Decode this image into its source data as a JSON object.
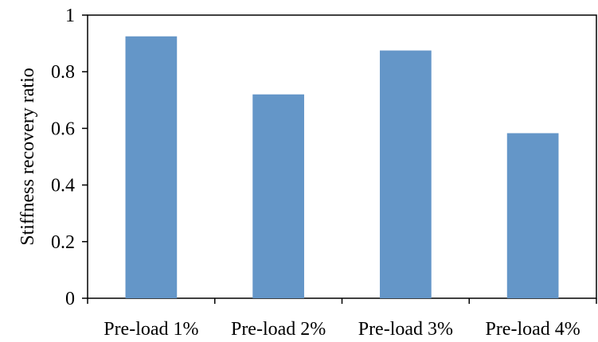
{
  "chart_data": {
    "type": "bar",
    "categories": [
      "Pre-load 1%",
      "Pre-load 2%",
      "Pre-load 3%",
      "Pre-load 4%"
    ],
    "values": [
      0.925,
      0.72,
      0.875,
      0.583
    ],
    "title": "",
    "xlabel": "",
    "ylabel": "Stiffness recovery ratio",
    "ylim": [
      0,
      1
    ],
    "yticks": [
      0,
      0.2,
      0.4,
      0.6,
      0.8,
      1
    ],
    "ytick_labels": [
      "0",
      "0.2",
      "0.4",
      "0.6",
      "0.8",
      "1"
    ],
    "bar_color": "#6496C8",
    "grid": false,
    "legend": "none"
  }
}
